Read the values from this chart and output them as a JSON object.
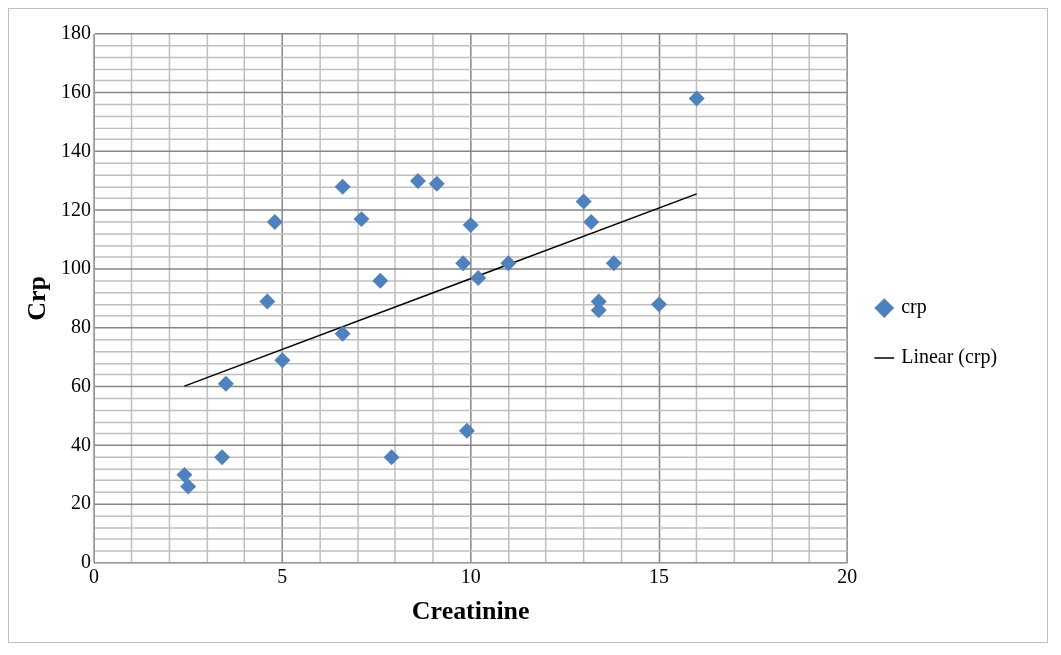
{
  "chart_data": {
    "type": "scatter",
    "xlabel": "Creatinine",
    "ylabel": "Crp",
    "series": [
      {
        "name": "crp",
        "color": "#4f81bd",
        "marker": "diamond",
        "x": [
          2.4,
          2.5,
          3.4,
          3.5,
          4.6,
          4.8,
          5.0,
          6.6,
          6.6,
          7.1,
          7.6,
          7.9,
          8.6,
          9.1,
          9.8,
          9.9,
          10.0,
          10.2,
          11.0,
          13.0,
          13.2,
          13.4,
          13.4,
          13.8,
          15.0,
          16.0
        ],
        "values": [
          30,
          26,
          36,
          61,
          89,
          116,
          69,
          128,
          78,
          117,
          96,
          36,
          130,
          129,
          102,
          45,
          115,
          97,
          102,
          123,
          116,
          89,
          86,
          102,
          88,
          158
        ]
      },
      {
        "name": "Linear (crp)",
        "type": "line",
        "color": "#000000",
        "marker": "none",
        "line_style": "solid",
        "x": [
          2.4,
          16.0
        ],
        "values": [
          60.2,
          125.6
        ]
      }
    ],
    "xlim": [
      0,
      20
    ],
    "xticks": [
      0,
      {
        "value": 1,
        "label": null
      },
      {
        "value": 2,
        "label": null
      },
      {
        "value": 3,
        "label": null
      },
      {
        "value": 4,
        "label": null
      },
      5,
      {
        "value": 6,
        "label": null
      },
      {
        "value": 7,
        "label": null
      },
      {
        "value": 8,
        "label": null
      },
      {
        "value": 9,
        "label": null
      },
      10,
      {
        "value": 11,
        "label": null
      },
      {
        "value": 12,
        "label": null
      },
      {
        "value": 13,
        "label": null
      },
      {
        "value": 14,
        "label": null
      },
      15,
      {
        "value": 16,
        "label": null
      },
      {
        "value": 17,
        "label": null
      },
      {
        "value": 18,
        "label": null
      },
      {
        "value": 19,
        "label": null
      },
      20
    ],
    "ylim": [
      0,
      180
    ],
    "yticks": [
      0,
      {
        "value": 4,
        "label": null
      },
      {
        "value": 8,
        "label": null
      },
      {
        "value": 12,
        "label": null
      },
      {
        "value": 16,
        "label": null
      },
      20,
      {
        "value": 24,
        "label": null
      },
      {
        "value": 28,
        "label": null
      },
      {
        "value": 32,
        "label": null
      },
      {
        "value": 36,
        "label": null
      },
      40,
      {
        "value": 44,
        "label": null
      },
      {
        "value": 48,
        "label": null
      },
      {
        "value": 52,
        "label": null
      },
      {
        "value": 56,
        "label": null
      },
      60,
      {
        "value": 64,
        "label": null
      },
      {
        "value": 68,
        "label": null
      },
      {
        "value": 72,
        "label": null
      },
      {
        "value": 76,
        "label": null
      },
      80,
      {
        "value": 84,
        "label": null
      },
      {
        "value": 88,
        "label": null
      },
      {
        "value": 92,
        "label": null
      },
      {
        "value": 96,
        "label": null
      },
      100,
      {
        "value": 104,
        "label": null
      },
      {
        "value": 108,
        "label": null
      },
      {
        "value": 112,
        "label": null
      },
      {
        "value": 116,
        "label": null
      },
      120,
      {
        "value": 124,
        "label": null
      },
      {
        "value": 128,
        "label": null
      },
      {
        "value": 132,
        "label": null
      },
      {
        "value": 136,
        "label": null
      },
      140,
      {
        "value": 144,
        "label": null
      },
      {
        "value": 148,
        "label": null
      },
      {
        "value": 152,
        "label": null
      },
      {
        "value": 156,
        "label": null
      },
      160,
      {
        "value": 164,
        "label": null
      },
      {
        "value": 168,
        "label": null
      },
      {
        "value": 172,
        "label": null
      },
      {
        "value": 176,
        "label": null
      },
      180
    ],
    "grid": true,
    "legend": "right"
  }
}
